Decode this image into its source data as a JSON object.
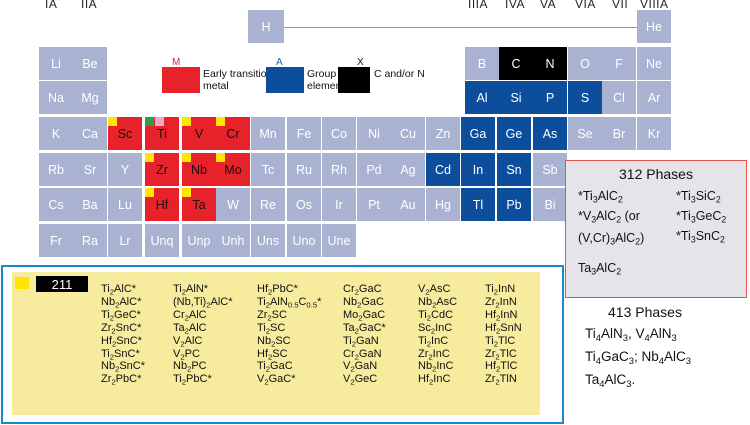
{
  "groups": [
    "IA",
    "IIA",
    "IIIA",
    "IVA",
    "VA",
    "VIA",
    "VII",
    "VIIIA"
  ],
  "elements": {
    "H": "H",
    "He": "He",
    "Li": "Li",
    "Be": "Be",
    "B": "B",
    "C": "C",
    "N": "N",
    "O": "O",
    "F": "F",
    "Ne": "Ne",
    "Na": "Na",
    "Mg": "Mg",
    "Al": "Al",
    "Si": "Si",
    "P": "P",
    "S": "S",
    "Cl": "Cl",
    "Ar": "Ar",
    "K": "K",
    "Ca": "Ca",
    "Sc": "Sc",
    "Ti": "Ti",
    "V": "V",
    "Cr": "Cr",
    "Mn": "Mn",
    "Fe": "Fe",
    "Co": "Co",
    "Ni": "Ni",
    "Cu": "Cu",
    "Zn": "Zn",
    "Ga": "Ga",
    "Ge": "Ge",
    "As": "As",
    "Se": "Se",
    "Br": "Br",
    "Kr": "Kr",
    "Rb": "Rb",
    "Sr": "Sr",
    "Y": "Y",
    "Zr": "Zr",
    "Nb": "Nb",
    "Mo": "Mo",
    "Tc": "Tc",
    "Ru": "Ru",
    "Rh": "Rh",
    "Pd": "Pd",
    "Ag": "Ag",
    "Cd": "Cd",
    "In": "In",
    "Sn": "Sn",
    "Sb": "Sb",
    "Cs": "Cs",
    "Ba": "Ba",
    "Lu": "Lu",
    "Hf": "Hf",
    "Ta": "Ta",
    "W": "W",
    "Re": "Re",
    "Os": "Os",
    "Ir": "Ir",
    "Pt": "Pt",
    "Au": "Au",
    "Hg": "Hg",
    "Tl": "Tl",
    "Pb": "Pb",
    "Bi": "Bi",
    "Fr": "Fr",
    "Ra": "Ra",
    "Lr": "Lr",
    "Unq": "Unq",
    "Unp": "Unp",
    "Unh": "Unh",
    "Uns": "Uns",
    "Uno": "Uno",
    "Une": "Une"
  },
  "legend": {
    "m_letter": "M",
    "m_text": "Early transition metal",
    "a_letter": "A",
    "a_text": "Group A element",
    "x_letter": "X",
    "x_text": "C and/or N"
  },
  "colors": {
    "M": "#e8222a",
    "A": "#0d4e9c",
    "X": "#000000",
    "other": "#a9b3d1",
    "211_marker": "#ffe600"
  },
  "phases_312": {
    "title": "312 Phases",
    "left": [
      "*Ti3AlC2",
      "*V3AlC2 (or",
      "(V,Cr)3AlC2)",
      "Ta3AlC2"
    ],
    "right": [
      "*Ti3SiC2",
      "*Ti3GeC2",
      "*Ti3SnC2"
    ]
  },
  "phases_413": {
    "title": "413 Phases",
    "lines": [
      "Ti4AlN3, V4AlN3",
      "Ti4GaC3; Nb4AlC3",
      "Ta4AlC3."
    ]
  },
  "phases_211": {
    "label": "211",
    "columns": [
      [
        "Ti2AlC*",
        "Nb2AlC*",
        "Ti2GeC*",
        "Zr2SnC*",
        "Hf2SnC*",
        "Ti2SnC*",
        "Nb2SnC*",
        "Zr2PbC*"
      ],
      [
        "Ti2AlN*",
        "(Nb,Ti)2AlC*",
        "Cr2AlC",
        "Ta2AlC",
        "V2AlC",
        "V2PC",
        "Nb2PC",
        "Ti2PbC*"
      ],
      [
        "Hf2PbC*",
        "Ti2AlN0.5C0.5*",
        "Zr2SC",
        "Ti2SC",
        "Nb2SC",
        "Hf2SC",
        "Ti2GaC",
        "V2GaC*"
      ],
      [
        "Cr2GaC",
        "Nb2GaC",
        "Mo2GaC",
        "Ta2GaC*",
        "Ti2GaN",
        "Cr2GaN",
        "V2GaN",
        "V2GeC"
      ],
      [
        "V2AsC",
        "Nb2AsC",
        "Ti2CdC",
        "Sc2InC",
        "Ti2InC",
        "Zr2InC",
        "Nb2InC",
        "Hf2InC"
      ],
      [
        "Ti2InN",
        "Zr2InN",
        "Hf2InN",
        "Hf2SnN",
        "Ti2TlC",
        "Zr2TlC",
        "Hf2TlC",
        "Zr2TlN"
      ]
    ]
  }
}
